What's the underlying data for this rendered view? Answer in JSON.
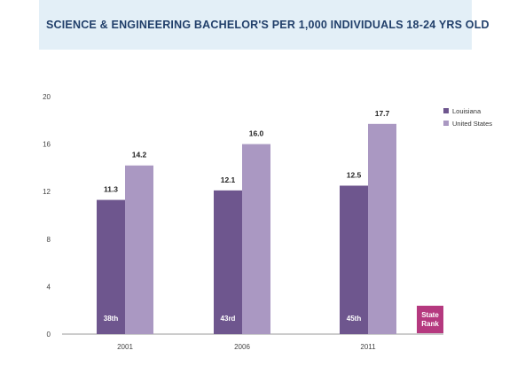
{
  "title": "SCIENCE & ENGINEERING BACHELOR'S PER 1,000 INDIVIDUALS 18-24 YRS OLD",
  "colors": {
    "louisiana": "#6e568e",
    "united_states": "#aa98c2",
    "rank_badge": "#b5397f",
    "title_band": "#e3eff7",
    "title_text": "#213f6a"
  },
  "state_rank_badge": [
    "State",
    "Rank"
  ],
  "chart_data": {
    "type": "bar",
    "title": "SCIENCE & ENGINEERING BACHELOR'S PER 1,000 INDIVIDUALS 18-24 YRS OLD",
    "categories": [
      "2001",
      "2006",
      "2011"
    ],
    "series": [
      {
        "name": "Louisiana",
        "values": [
          11.3,
          12.1,
          12.5
        ],
        "labels": [
          "11.3",
          "12.1",
          "12.5"
        ],
        "rank_labels": [
          "38th",
          "43rd",
          "45th"
        ]
      },
      {
        "name": "United States",
        "values": [
          14.2,
          16.0,
          17.7
        ],
        "labels": [
          "14.2",
          "16.0",
          "17.7"
        ]
      }
    ],
    "yticks": [
      "0",
      "4",
      "8",
      "12",
      "16",
      "20"
    ],
    "ylim": [
      0,
      20
    ],
    "grid": false,
    "legend_position": "right",
    "xlabel": "",
    "ylabel": ""
  }
}
